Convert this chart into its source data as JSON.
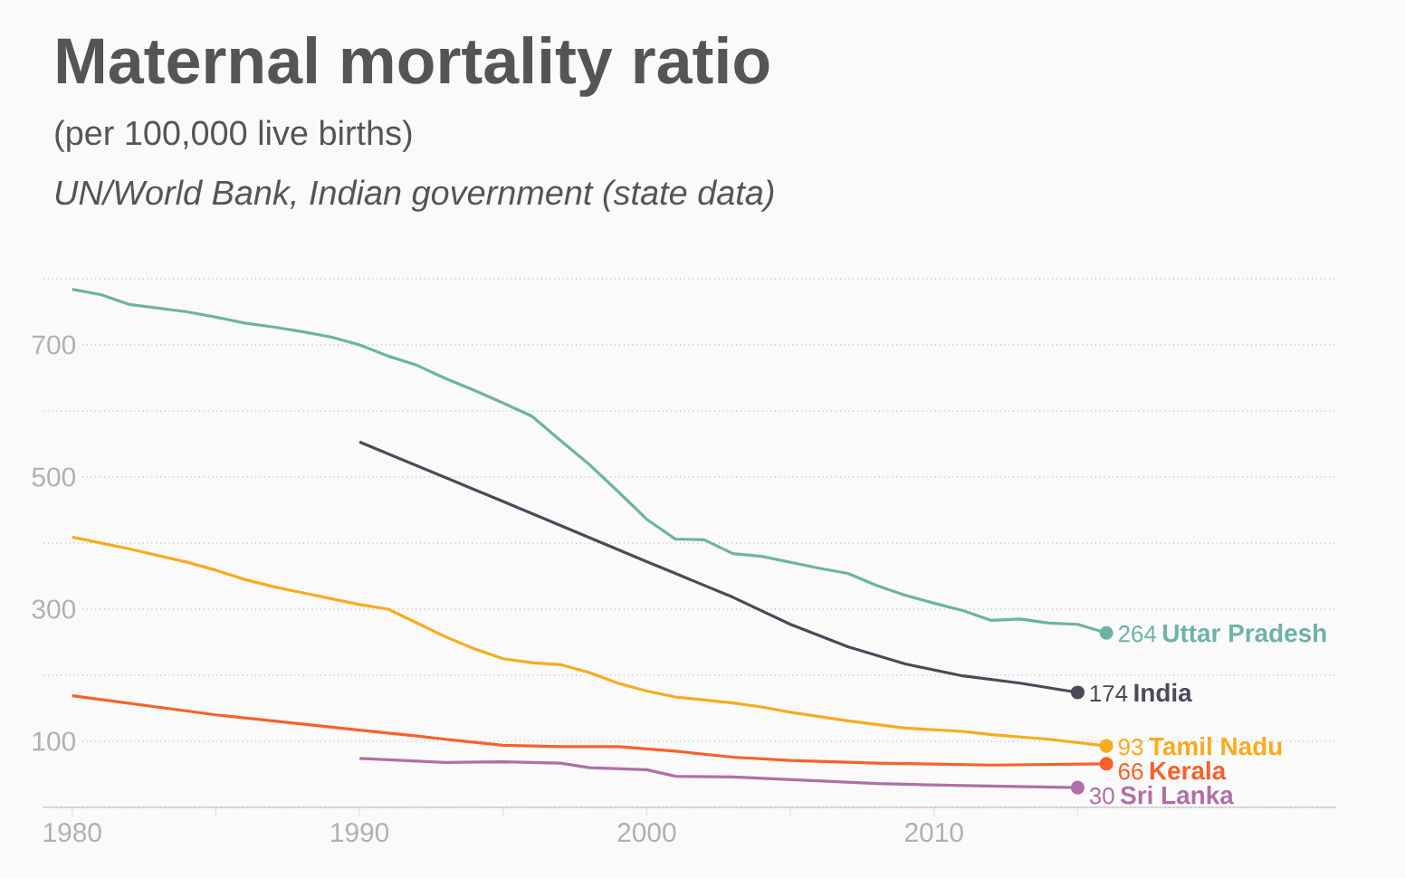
{
  "chart_data": {
    "type": "line",
    "title": "Maternal mortality ratio",
    "subtitle": "(per 100,000 live births)",
    "annotations": [
      "UN/World Bank, Indian government (state data)"
    ],
    "xlim": [
      1979,
      2024
    ],
    "xticks": [
      1980,
      {
        "value": 1985,
        "label": null
      },
      1990,
      {
        "value": 1995,
        "label": null
      },
      2000,
      {
        "value": 2005,
        "label": null
      },
      2010,
      {
        "value": 2015,
        "label": null
      }
    ],
    "ylim": [
      0,
      800
    ],
    "yticks": [
      {
        "value": 0,
        "label": null
      },
      100,
      {
        "value": 200,
        "label": null
      },
      300,
      {
        "value": 400,
        "label": null
      },
      500,
      {
        "value": 600,
        "label": null
      },
      700,
      {
        "value": 800,
        "label": null
      }
    ],
    "grid": "y",
    "series": [
      {
        "name": "Uttar Pradesh",
        "color": "#6db3a5",
        "x": [
          1980,
          1981,
          1982,
          1984,
          1985,
          1986,
          1987,
          1988,
          1989,
          1990,
          1991,
          1992,
          1993,
          1994,
          1995,
          1996,
          1997,
          1998,
          1999,
          2000,
          2001,
          2002,
          2003,
          2004,
          2005,
          2006,
          2007,
          2008,
          2009,
          2010,
          2011,
          2012,
          2013,
          2014,
          2015,
          2016
        ],
        "values": [
          784,
          776,
          761,
          750,
          742,
          733,
          727,
          720,
          712,
          700,
          683,
          669,
          649,
          631,
          612,
          592,
          555,
          519,
          478,
          436,
          406,
          405,
          384,
          380,
          371,
          362,
          354,
          336,
          321,
          309,
          298,
          283,
          285,
          279,
          277,
          264
        ],
        "value_labels": [
          null,
          null,
          null,
          null,
          null,
          null,
          null,
          null,
          null,
          null,
          null,
          null,
          null,
          null,
          null,
          null,
          null,
          null,
          null,
          null,
          null,
          null,
          null,
          null,
          null,
          null,
          null,
          null,
          null,
          null,
          null,
          null,
          null,
          null,
          null,
          "264"
        ]
      },
      {
        "name": "India",
        "color": "#4a4a5a",
        "x": [
          1990,
          1995,
          2000,
          2001,
          2003,
          2005,
          2007,
          2009,
          2011,
          2013,
          2015
        ],
        "values": [
          553,
          463,
          372,
          354,
          318,
          277,
          243,
          217,
          199,
          188,
          174
        ],
        "value_labels": [
          null,
          null,
          null,
          null,
          null,
          null,
          null,
          null,
          null,
          null,
          "174"
        ]
      },
      {
        "name": "Tamil Nadu",
        "color": "#f9ab1e",
        "x": [
          1980,
          1982,
          1984,
          1985,
          1986,
          1987,
          1988,
          1989,
          1990,
          1991,
          1992,
          1993,
          1994,
          1995,
          1996,
          1997,
          1998,
          1999,
          2000,
          2001,
          2003,
          2004,
          2005,
          2007,
          2009,
          2011,
          2012,
          2014,
          2016
        ],
        "values": [
          409,
          391,
          371,
          359,
          345,
          334,
          325,
          316,
          307,
          300,
          279,
          258,
          240,
          225,
          219,
          216,
          204,
          188,
          176,
          167,
          158,
          152,
          144,
          131,
          120,
          115,
          110,
          103,
          93
        ],
        "value_labels": [
          null,
          null,
          null,
          null,
          null,
          null,
          null,
          null,
          null,
          null,
          null,
          null,
          null,
          null,
          null,
          null,
          null,
          null,
          null,
          null,
          null,
          null,
          null,
          null,
          null,
          null,
          null,
          null,
          "93"
        ]
      },
      {
        "name": "Kerala",
        "color": "#f9602a",
        "x": [
          1980,
          1985,
          1990,
          1992,
          1993,
          1995,
          1997,
          1999,
          2001,
          2003,
          2005,
          2008,
          2012,
          2016
        ],
        "values": [
          169,
          140,
          117,
          108,
          103,
          94,
          92,
          92,
          85,
          76,
          71,
          67,
          64,
          66
        ],
        "value_labels": [
          null,
          null,
          null,
          null,
          null,
          null,
          null,
          null,
          null,
          null,
          null,
          null,
          null,
          "66"
        ]
      },
      {
        "name": "Sri Lanka",
        "color": "#b06fa6",
        "x": [
          1990,
          1993,
          1995,
          1997,
          1998,
          2000,
          2001,
          2003,
          2005,
          2008,
          2011,
          2015
        ],
        "values": [
          74,
          68,
          69,
          67,
          60,
          57,
          47,
          46,
          42,
          36,
          33,
          30
        ],
        "value_labels": [
          null,
          null,
          null,
          null,
          null,
          null,
          null,
          null,
          null,
          null,
          null,
          "30"
        ]
      }
    ]
  }
}
